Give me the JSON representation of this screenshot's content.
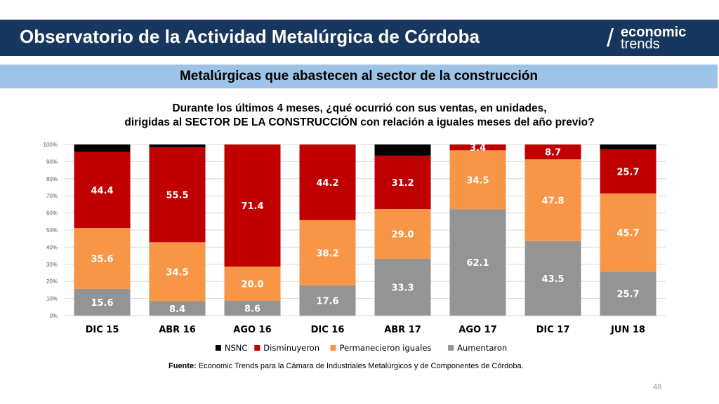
{
  "header": {
    "title": "Observatorio de la Actividad Metalúrgica de Córdoba",
    "logo_top": "economic",
    "logo_bottom": "trends",
    "background_color": "#17375e"
  },
  "subtitle_band": {
    "title": "Metalúrgicas que abastecen al sector de la construcción",
    "background_color": "#9dc3e6"
  },
  "question": {
    "line1": "Durante los últimos 4 meses, ¿qué ocurrió con sus ventas, en unidades,",
    "line2": "dirigidas al SECTOR DE LA CONSTRUCCIÓN con relación a iguales meses del año previo?"
  },
  "chart_data": {
    "type": "bar",
    "stacked": true,
    "percent_axis": true,
    "categories": [
      "DIC 15",
      "ABR 16",
      "AGO 16",
      "DIC 16",
      "ABR 17",
      "AGO 17",
      "DIC 17",
      "JUN 18"
    ],
    "ylim": [
      0,
      100
    ],
    "yticks": [
      "0%",
      "10%",
      "20%",
      "30%",
      "40%",
      "50%",
      "60%",
      "70%",
      "80%",
      "90%",
      "100%"
    ],
    "grid": true,
    "legend_position": "bottom",
    "series": [
      {
        "name": "Aumentaron",
        "color": "#949494",
        "values": [
          15.6,
          8.4,
          8.6,
          17.6,
          33.3,
          62.1,
          43.5,
          25.7
        ],
        "labels": [
          "15.6",
          "8.4",
          "8.6",
          "17.6",
          "33.3",
          "62.1",
          "43.5",
          "25.7"
        ]
      },
      {
        "name": "Permanecieron iguales",
        "color": "#f79646",
        "values": [
          35.6,
          34.5,
          20.0,
          38.2,
          29.0,
          34.5,
          47.8,
          45.7
        ],
        "labels": [
          "35.6",
          "34.5",
          "20.0",
          "38.2",
          "29.0",
          "34.5",
          "47.8",
          "45.7"
        ]
      },
      {
        "name": "Disminuyeron",
        "color": "#c00000",
        "values": [
          44.4,
          55.5,
          71.4,
          44.2,
          31.2,
          3.4,
          8.7,
          25.7
        ],
        "labels": [
          "44.4",
          "55.5",
          "71.4",
          "44.2",
          "31.2",
          "3.4",
          "8.7",
          "25.7"
        ]
      },
      {
        "name": "NSNC",
        "color": "#000000",
        "values": [
          4.4,
          1.6,
          0.0,
          0.0,
          6.5,
          0.0,
          0.0,
          2.9
        ],
        "labels": [
          "",
          "",
          "",
          "",
          "",
          "",
          "",
          ""
        ]
      }
    ],
    "legend_order": [
      "NSNC",
      "Disminuyeron",
      "Permanecieron iguales",
      "Aumentaron"
    ]
  },
  "source": {
    "label": "Fuente:",
    "text": " Economic Trends para la Cámara de Industriales Metalúrgicos y de Componentes de Córdoba."
  },
  "page_number": "48"
}
